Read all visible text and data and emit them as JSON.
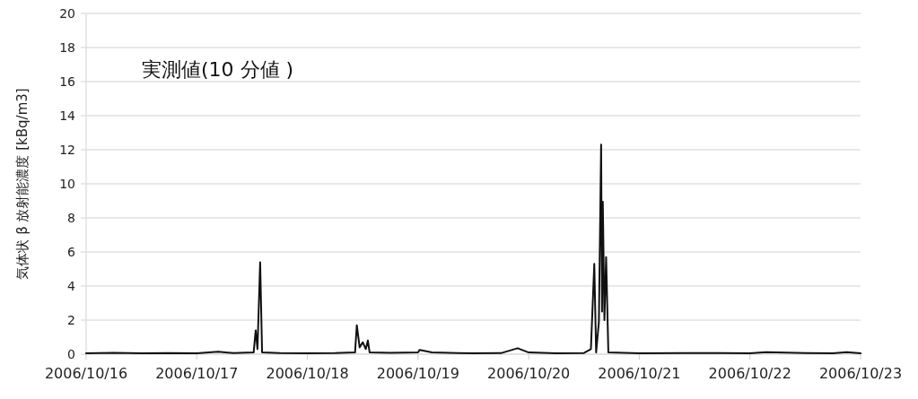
{
  "chart_data": {
    "type": "line",
    "title": "実測値(10 分値 )",
    "ylabel": "気体状 β 放射能濃度 [kBq/m3]",
    "xlim": [
      "2006-10-16",
      "2006-10-23"
    ],
    "xticks": [
      {
        "value": "2006-10-16",
        "label": "2006/10/16"
      },
      {
        "value": "2006-10-17",
        "label": "2006/10/17"
      },
      {
        "value": "2006-10-18",
        "label": "2006/10/18"
      },
      {
        "value": "2006-10-19",
        "label": "2006/10/19"
      },
      {
        "value": "2006-10-20",
        "label": "2006/10/20"
      },
      {
        "value": "2006-10-21",
        "label": "2006/10/21"
      },
      {
        "value": "2006-10-22",
        "label": "2006/10/22"
      },
      {
        "value": "2006-10-23",
        "label": "2006/10/23"
      }
    ],
    "ylim": [
      0,
      20
    ],
    "yticks": [
      0,
      2,
      4,
      6,
      8,
      10,
      12,
      14,
      16,
      18,
      20
    ],
    "grid": "y",
    "marker": "none",
    "line_style": "solid",
    "series": [
      {
        "color": "#111111",
        "x": [
          "2006-10-16T00:00",
          "2006-10-16T06:00",
          "2006-10-16T12:00",
          "2006-10-16T18:00",
          "2006-10-17T00:00",
          "2006-10-17T04:40",
          "2006-10-17T08:00",
          "2006-10-17T12:20",
          "2006-10-17T12:47",
          "2006-10-17T13:10",
          "2006-10-17T13:45",
          "2006-10-17T14:10",
          "2006-10-17T18:00",
          "2006-10-18T00:00",
          "2006-10-18T06:00",
          "2006-10-18T10:20",
          "2006-10-18T10:43",
          "2006-10-18T11:20",
          "2006-10-18T12:00",
          "2006-10-18T12:40",
          "2006-10-18T13:07",
          "2006-10-18T13:30",
          "2006-10-18T18:00",
          "2006-10-19T00:00",
          "2006-10-19T00:20",
          "2006-10-19T03:00",
          "2006-10-19T12:00",
          "2006-10-19T18:00",
          "2006-10-19T21:36",
          "2006-10-20T00:00",
          "2006-10-20T06:00",
          "2006-10-20T12:00",
          "2006-10-20T13:30",
          "2006-10-20T14:14",
          "2006-10-20T14:38",
          "2006-10-20T15:14",
          "2006-10-20T15:43",
          "2006-10-20T15:55",
          "2006-10-20T16:05",
          "2006-10-20T16:26",
          "2006-10-20T16:48",
          "2006-10-20T17:17",
          "2006-10-21T00:00",
          "2006-10-21T12:00",
          "2006-10-21T18:00",
          "2006-10-22T00:00",
          "2006-10-22T03:30",
          "2006-10-22T12:00",
          "2006-10-22T18:00",
          "2006-10-22T21:00",
          "2006-10-23T00:00"
        ],
        "values": [
          0.05,
          0.08,
          0.05,
          0.07,
          0.05,
          0.15,
          0.06,
          0.1,
          1.4,
          0.3,
          5.4,
          0.1,
          0.06,
          0.05,
          0.06,
          0.1,
          1.7,
          0.4,
          0.7,
          0.3,
          0.8,
          0.1,
          0.08,
          0.1,
          0.25,
          0.1,
          0.05,
          0.06,
          0.35,
          0.1,
          0.05,
          0.07,
          0.3,
          5.3,
          0.1,
          1.9,
          12.3,
          2.5,
          8.95,
          2.0,
          5.7,
          0.1,
          0.05,
          0.07,
          0.06,
          0.05,
          0.12,
          0.07,
          0.05,
          0.12,
          0.05
        ]
      }
    ]
  }
}
